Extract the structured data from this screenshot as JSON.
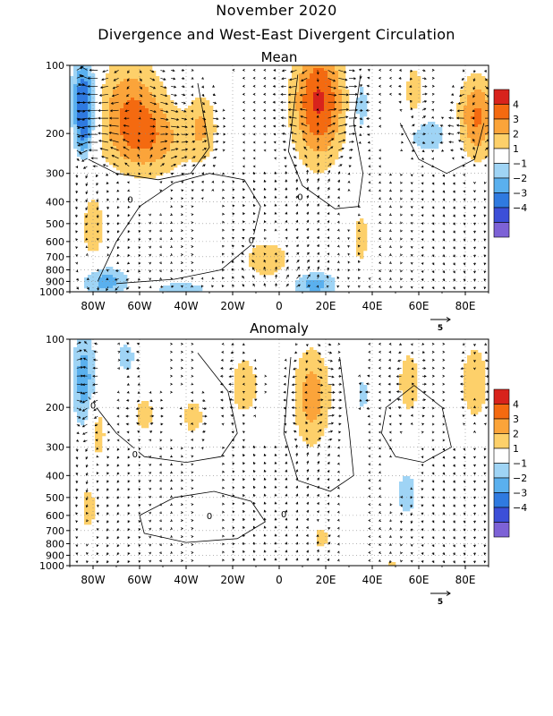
{
  "figure": {
    "title": "November 2020",
    "subtitle": "Divergence and West-East Divergent Circulation"
  },
  "colorbar": {
    "levels": [
      "4",
      "3",
      "2",
      "1",
      "−1",
      "−2",
      "−3",
      "−4"
    ],
    "colors": [
      "#d8231c",
      "#f46a10",
      "#fba43a",
      "#fdd06a",
      "#ffffff",
      "#9fd4f5",
      "#5ab0ee",
      "#2f7ae0",
      "#3c4fd8",
      "#7d62d6"
    ]
  },
  "chart_data": [
    {
      "type": "heatmap",
      "title": "Mean",
      "x_ticks": [
        "80W",
        "60W",
        "40W",
        "20W",
        "0",
        "20E",
        "40E",
        "60E",
        "80E"
      ],
      "x_tick_values": [
        -80,
        -60,
        -40,
        -20,
        0,
        20,
        40,
        60,
        80
      ],
      "xlim": [
        -90,
        90
      ],
      "y_ticks": [
        "100",
        "200",
        "300",
        "400",
        "500",
        "600",
        "700",
        "800",
        "900",
        "1000"
      ],
      "y_tick_values": [
        100,
        200,
        300,
        400,
        500,
        600,
        700,
        800,
        900,
        1000
      ],
      "ylim": [
        1000,
        100
      ],
      "y_scale": "log",
      "vector_reference": "5",
      "contour_labels": [
        "0",
        "0",
        "0"
      ],
      "grid": true,
      "blobs": [
        {
          "lon": -84,
          "p": 140,
          "dlon": 5,
          "dp": 0.18,
          "value": -4.2
        },
        {
          "lon": -84,
          "p": 210,
          "dlon": 4,
          "dp": 0.1,
          "value": -2
        },
        {
          "lon": -64,
          "p": 150,
          "dlon": 14,
          "dp": 0.22,
          "value": 2.6
        },
        {
          "lon": -55,
          "p": 215,
          "dlon": 18,
          "dp": 0.16,
          "value": 2.2
        },
        {
          "lon": -33,
          "p": 185,
          "dlon": 6,
          "dp": 0.15,
          "value": 1.8
        },
        {
          "lon": -80,
          "p": 520,
          "dlon": 6,
          "dp": 0.18,
          "value": 1.5
        },
        {
          "lon": 17,
          "p": 145,
          "dlon": 11,
          "dp": 0.26,
          "value": 4.2
        },
        {
          "lon": 35,
          "p": 150,
          "dlon": 4,
          "dp": 0.16,
          "value": -1.6
        },
        {
          "lon": 58,
          "p": 130,
          "dlon": 4,
          "dp": 0.12,
          "value": 1.8
        },
        {
          "lon": 64,
          "p": 205,
          "dlon": 10,
          "dp": 0.09,
          "value": -1.6
        },
        {
          "lon": 85,
          "p": 170,
          "dlon": 8,
          "dp": 0.18,
          "value": 3.2
        },
        {
          "lon": -5,
          "p": 720,
          "dlon": 12,
          "dp": 0.1,
          "value": 1.6
        },
        {
          "lon": 35,
          "p": 580,
          "dlon": 4,
          "dp": 0.14,
          "value": 1.5
        },
        {
          "lon": -75,
          "p": 900,
          "dlon": 10,
          "dp": 0.07,
          "value": -2.5
        },
        {
          "lon": 15,
          "p": 930,
          "dlon": 10,
          "dp": 0.06,
          "value": -2.4
        },
        {
          "lon": -42,
          "p": 970,
          "dlon": 12,
          "dp": 0.03,
          "value": -1.8
        }
      ]
    },
    {
      "type": "heatmap",
      "title": "Anomaly",
      "x_ticks": [
        "80W",
        "60W",
        "40W",
        "20W",
        "0",
        "20E",
        "40E",
        "60E",
        "80E"
      ],
      "x_tick_values": [
        -80,
        -60,
        -40,
        -20,
        0,
        20,
        40,
        60,
        80
      ],
      "xlim": [
        -90,
        90
      ],
      "y_ticks": [
        "100",
        "200",
        "300",
        "400",
        "500",
        "600",
        "700",
        "800",
        "900",
        "1000"
      ],
      "y_tick_values": [
        100,
        200,
        300,
        400,
        500,
        600,
        700,
        800,
        900,
        1000
      ],
      "ylim": [
        1000,
        100
      ],
      "y_scale": "log",
      "vector_reference": "5",
      "contour_labels": [
        "0",
        "0",
        "0",
        "0"
      ],
      "grid": true,
      "blobs": [
        {
          "lon": -84,
          "p": 150,
          "dlon": 5,
          "dp": 0.22,
          "value": -2.6
        },
        {
          "lon": -66,
          "p": 120,
          "dlon": 6,
          "dp": 0.1,
          "value": -1.3
        },
        {
          "lon": -78,
          "p": 260,
          "dlon": 4,
          "dp": 0.14,
          "value": 1.6
        },
        {
          "lon": -58,
          "p": 215,
          "dlon": 5,
          "dp": 0.09,
          "value": 1.6
        },
        {
          "lon": -37,
          "p": 220,
          "dlon": 5,
          "dp": 0.09,
          "value": 1.6
        },
        {
          "lon": -15,
          "p": 160,
          "dlon": 7,
          "dp": 0.16,
          "value": 1.6
        },
        {
          "lon": 14,
          "p": 180,
          "dlon": 8,
          "dp": 0.22,
          "value": 2.6
        },
        {
          "lon": 36,
          "p": 175,
          "dlon": 3,
          "dp": 0.08,
          "value": -1.5
        },
        {
          "lon": 56,
          "p": 155,
          "dlon": 5,
          "dp": 0.15,
          "value": 1.8
        },
        {
          "lon": 84,
          "p": 155,
          "dlon": 6,
          "dp": 0.18,
          "value": 1.9
        },
        {
          "lon": -82,
          "p": 560,
          "dlon": 4,
          "dp": 0.12,
          "value": 1.5
        },
        {
          "lon": 55,
          "p": 480,
          "dlon": 5,
          "dp": 0.12,
          "value": -1.6
        },
        {
          "lon": 18,
          "p": 750,
          "dlon": 4,
          "dp": 0.06,
          "value": 1.5
        },
        {
          "lon": 48,
          "p": 990,
          "dlon": 3,
          "dp": 0.02,
          "value": 1.5
        }
      ]
    }
  ]
}
